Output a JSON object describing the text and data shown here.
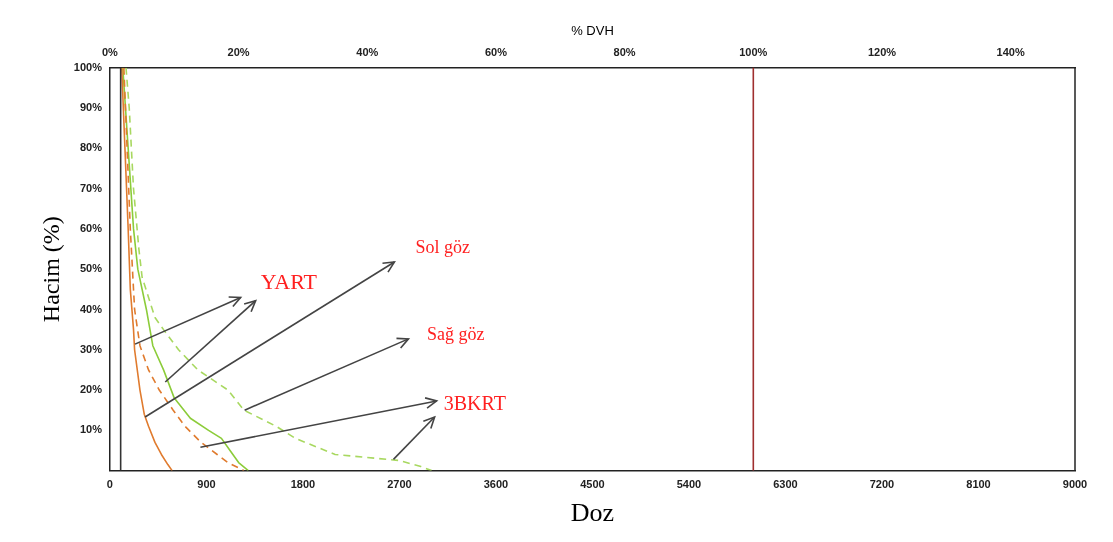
{
  "chart_data": {
    "type": "line",
    "x2label": "% DVH",
    "xlabel": "Doz",
    "ylabel": "Hacim (%)",
    "xlim": [
      0,
      9000
    ],
    "xticks": [
      0,
      900,
      1800,
      2700,
      3600,
      4500,
      5400,
      6300,
      7200,
      8100,
      9000
    ],
    "x2lim": [
      0,
      150
    ],
    "x2ticks": [
      {
        "value": 0,
        "label": "0%"
      },
      {
        "value": 20,
        "label": "20%"
      },
      {
        "value": 40,
        "label": "40%"
      },
      {
        "value": 60,
        "label": "60%"
      },
      {
        "value": 80,
        "label": "80%"
      },
      {
        "value": 100,
        "label": "100%"
      },
      {
        "value": 120,
        "label": "120%"
      },
      {
        "value": 140,
        "label": "140%"
      }
    ],
    "ylim": [
      0,
      100
    ],
    "yticks": [
      {
        "value": 0,
        "label": null
      },
      {
        "value": 10,
        "label": "10%"
      },
      {
        "value": 20,
        "label": "20%"
      },
      {
        "value": 30,
        "label": "30%"
      },
      {
        "value": 40,
        "label": "40%"
      },
      {
        "value": 50,
        "label": "50%"
      },
      {
        "value": 60,
        "label": "60%"
      },
      {
        "value": 70,
        "label": "70%"
      },
      {
        "value": 80,
        "label": "80%"
      },
      {
        "value": 90,
        "label": "90%"
      },
      {
        "value": 100,
        "label": "100%"
      }
    ],
    "grid": false,
    "legend": false,
    "marker": "none",
    "series": [
      {
        "color": "#e07b2e",
        "line_style": "solid",
        "x": [
          110,
          140,
          170,
          190,
          220,
          230,
          280,
          320,
          360,
          420,
          480,
          540,
          580
        ],
        "values": [
          100,
          80,
          60,
          45,
          35,
          30,
          20,
          14,
          11,
          7,
          4,
          1.5,
          0
        ]
      },
      {
        "color": "#e07b2e",
        "line_style": "dashed",
        "x": [
          130,
          160,
          190,
          230,
          280,
          360,
          460,
          590,
          700,
          850,
          1000,
          1100,
          1250
        ],
        "values": [
          100,
          80,
          60,
          40,
          31,
          25,
          20,
          15,
          11,
          7,
          4,
          2,
          0
        ]
      },
      {
        "color": "#8ccc3a",
        "line_style": "solid",
        "x": [
          120,
          170,
          220,
          260,
          340,
          400,
          500,
          600,
          750,
          920,
          1040,
          1120,
          1200,
          1290
        ],
        "values": [
          100,
          80,
          60,
          50,
          40,
          31,
          25,
          18,
          13,
          10,
          8,
          5,
          2,
          0
        ]
      },
      {
        "color": "#a8d860",
        "line_style": "dashed",
        "x": [
          150,
          180,
          220,
          270,
          300,
          420,
          500,
          640,
          820,
          1100,
          1250,
          1550,
          1730,
          2100,
          2500,
          2700,
          2900,
          3000
        ],
        "values": [
          100,
          90,
          70,
          55,
          48,
          38,
          35,
          30,
          25,
          20,
          15,
          11,
          8,
          4,
          3,
          2.5,
          1,
          0
        ]
      }
    ],
    "ref_lines": [
      {
        "axis": "x",
        "value": 100,
        "color": "#333333"
      },
      {
        "axis": "x",
        "value": 6000,
        "color": "#a03030"
      }
    ],
    "annotations": [
      {
        "text": "YART",
        "x": 234,
        "y": 31.4
      },
      {
        "text": "Sol göz",
        "x": 328,
        "y": 13.3
      },
      {
        "text": "Sağ göz",
        "x": 1256,
        "y": 15
      },
      {
        "text": "3BKRT",
        "x": 844,
        "y": 5.8
      }
    ]
  }
}
